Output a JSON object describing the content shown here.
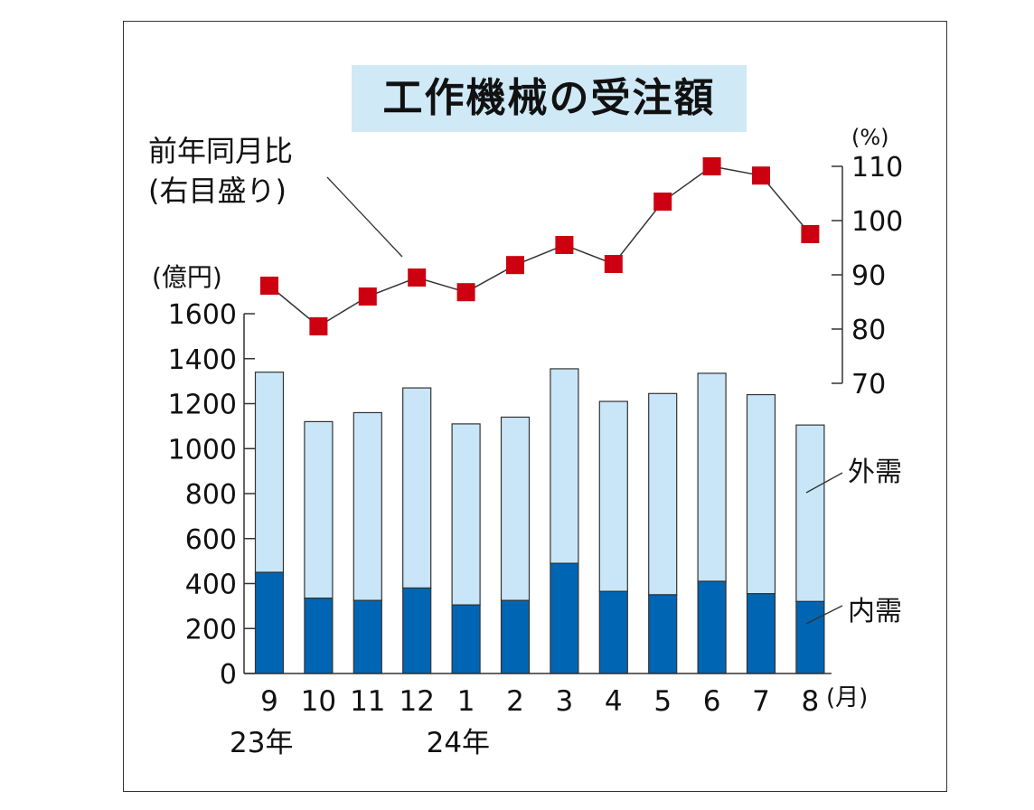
{
  "chart_data": {
    "type": "bar",
    "title": "工作機械の受注額",
    "categories": [
      "9",
      "10",
      "11",
      "12",
      "1",
      "2",
      "3",
      "4",
      "5",
      "6",
      "7",
      "8"
    ],
    "year_labels": [
      {
        "text": "23年",
        "category_index": 0
      },
      {
        "text": "24年",
        "category_index": 4
      }
    ],
    "x_unit": "(月)",
    "left_axis": {
      "unit": "(億円)",
      "ylim": [
        0,
        1600
      ],
      "ticks": [
        0,
        200,
        400,
        600,
        800,
        1000,
        1200,
        1400,
        1600
      ]
    },
    "right_axis": {
      "unit": "(%)",
      "ylim": [
        70,
        110
      ],
      "ticks": [
        70,
        80,
        90,
        100,
        110
      ]
    },
    "series": [
      {
        "name": "内需",
        "stack": true,
        "color": "#0065b3",
        "values": [
          450,
          335,
          325,
          380,
          305,
          325,
          490,
          365,
          350,
          410,
          355,
          320
        ]
      },
      {
        "name": "外需",
        "stack": true,
        "color": "#c8e6f8",
        "values": [
          890,
          785,
          835,
          890,
          805,
          815,
          865,
          845,
          895,
          925,
          885,
          785
        ]
      },
      {
        "name": "前年同月比\n(右目盛り)",
        "type": "line",
        "axis": "right",
        "marker_color": "#cc0010",
        "values": [
          88,
          80.5,
          86,
          89.5,
          86.8,
          91.8,
          95.5,
          92,
          103.5,
          110,
          108.3,
          97.5
        ]
      }
    ],
    "legend_placement": "right-side labels",
    "grid": false
  }
}
